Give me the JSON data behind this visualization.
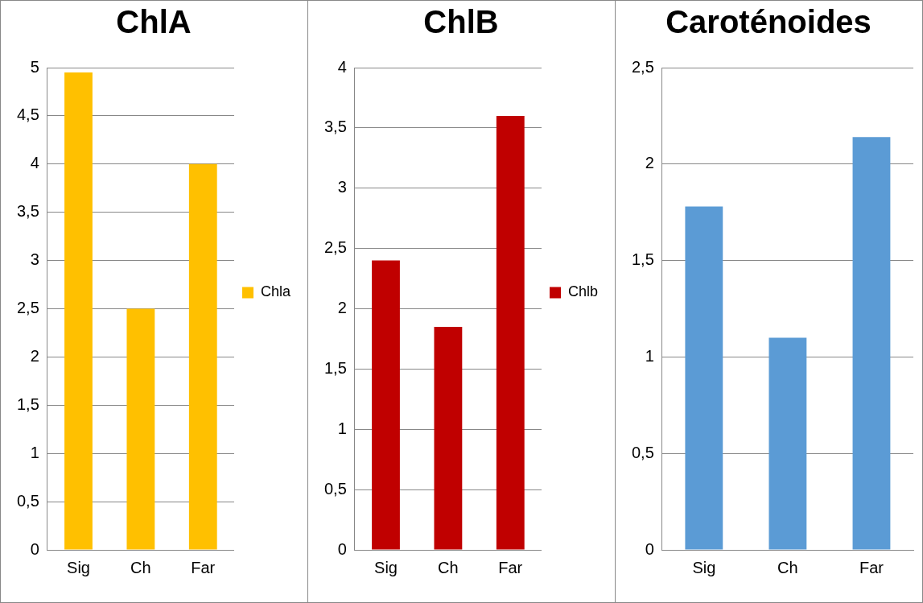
{
  "chart_data": [
    {
      "type": "bar",
      "title": "ChlA",
      "categories": [
        "Sig",
        "Ch",
        "Far"
      ],
      "series": [
        {
          "name": "Chla",
          "color": "#ffc000",
          "values": [
            4.95,
            2.5,
            4.0
          ]
        }
      ],
      "ylim": [
        0,
        5
      ],
      "yticks": [
        0,
        {
          "value": 0.5,
          "label": "0,5"
        },
        1,
        {
          "value": 1.5,
          "label": "1,5"
        },
        2,
        {
          "value": 2.5,
          "label": "2,5"
        },
        3,
        {
          "value": 3.5,
          "label": "3,5"
        },
        4,
        {
          "value": 4.5,
          "label": "4,5"
        },
        5
      ],
      "grid": "y",
      "legend": "right"
    },
    {
      "type": "bar",
      "title": "ChlB",
      "categories": [
        "Sig",
        "Ch",
        "Far"
      ],
      "series": [
        {
          "name": "Chlb",
          "color": "#c00000",
          "values": [
            2.4,
            1.85,
            3.6
          ]
        }
      ],
      "ylim": [
        0,
        4
      ],
      "yticks": [
        0,
        {
          "value": 0.5,
          "label": "0,5"
        },
        1,
        {
          "value": 1.5,
          "label": "1,5"
        },
        2,
        {
          "value": 2.5,
          "label": "2,5"
        },
        3,
        {
          "value": 3.5,
          "label": "3,5"
        },
        4
      ],
      "grid": "y",
      "legend": "right"
    },
    {
      "type": "bar",
      "title": "Caroténoides",
      "categories": [
        "Sig",
        "Ch",
        "Far"
      ],
      "series": [
        {
          "color": "#5b9bd5",
          "values": [
            1.78,
            1.1,
            2.14
          ]
        }
      ],
      "ylim": [
        0,
        2.5
      ],
      "yticks": [
        0,
        {
          "value": 0.5,
          "label": "0,5"
        },
        1,
        {
          "value": 1.5,
          "label": "1,5"
        },
        2,
        {
          "value": 2.5,
          "label": "2,5"
        }
      ],
      "grid": "y"
    }
  ]
}
